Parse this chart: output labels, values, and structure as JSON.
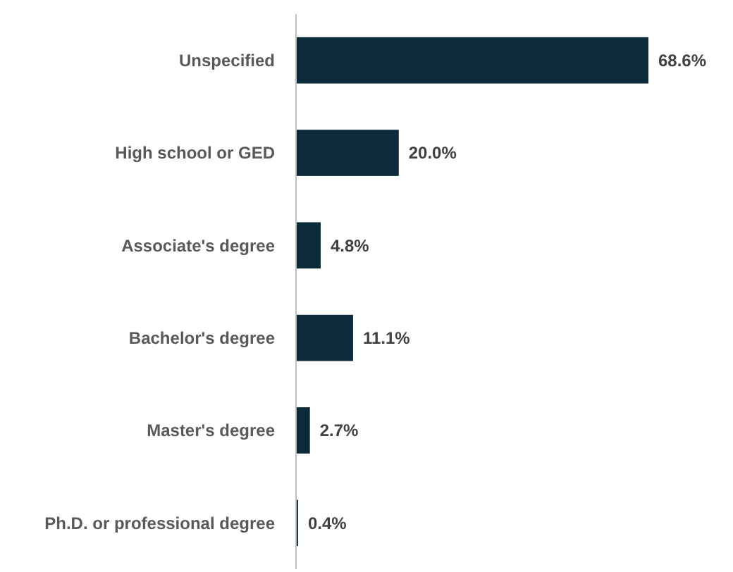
{
  "chart_data": {
    "type": "bar",
    "orientation": "horizontal",
    "categories": [
      "Unspecified",
      "High school or GED",
      "Associate's degree",
      "Bachelor's degree",
      "Master's degree",
      "Ph.D. or professional degree"
    ],
    "values": [
      68.6,
      20.0,
      4.8,
      11.1,
      2.7,
      0.4
    ],
    "value_labels": [
      "68.6%",
      "20.0%",
      "4.8%",
      "11.1%",
      "2.7%",
      "0.4%"
    ],
    "color": "#0c2b3a"
  }
}
